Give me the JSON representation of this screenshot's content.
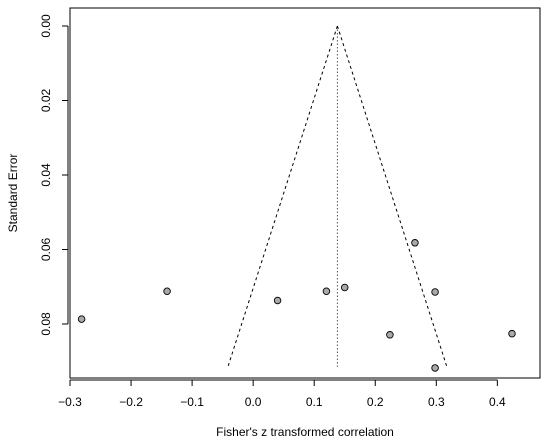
{
  "chart_data": {
    "type": "scatter",
    "subtype": "funnel-plot",
    "xlabel": "Fisher's z transformed correlation",
    "ylabel": "Standard Error",
    "xlim": [
      -0.3,
      0.43
    ],
    "ylim": [
      0.0,
      0.092
    ],
    "y_reversed": true,
    "x_ticks": [
      -0.3,
      -0.2,
      -0.1,
      0.0,
      0.1,
      0.2,
      0.3,
      0.4
    ],
    "x_tick_labels": [
      "−0.3",
      "−0.2",
      "−0.1",
      "0.0",
      "0.1",
      "0.2",
      "0.3",
      "0.4"
    ],
    "y_ticks": [
      0.0,
      0.02,
      0.04,
      0.06,
      0.08
    ],
    "y_tick_labels": [
      "0.00",
      "0.02",
      "0.04",
      "0.06",
      "0.08"
    ],
    "pooled_estimate": 0.138,
    "funnel_se_max": 0.0915,
    "points": [
      {
        "x": -0.281,
        "y": 0.0787
      },
      {
        "x": -0.141,
        "y": 0.0712
      },
      {
        "x": 0.04,
        "y": 0.0737
      },
      {
        "x": 0.12,
        "y": 0.0712
      },
      {
        "x": 0.15,
        "y": 0.0702
      },
      {
        "x": 0.265,
        "y": 0.0582
      },
      {
        "x": 0.298,
        "y": 0.0714
      },
      {
        "x": 0.224,
        "y": 0.0829
      },
      {
        "x": 0.298,
        "y": 0.0918
      },
      {
        "x": 0.424,
        "y": 0.0826
      }
    ],
    "marker_fill": "#a9a9a9",
    "marker_stroke": "#000000",
    "grid": false,
    "legend": "none"
  }
}
